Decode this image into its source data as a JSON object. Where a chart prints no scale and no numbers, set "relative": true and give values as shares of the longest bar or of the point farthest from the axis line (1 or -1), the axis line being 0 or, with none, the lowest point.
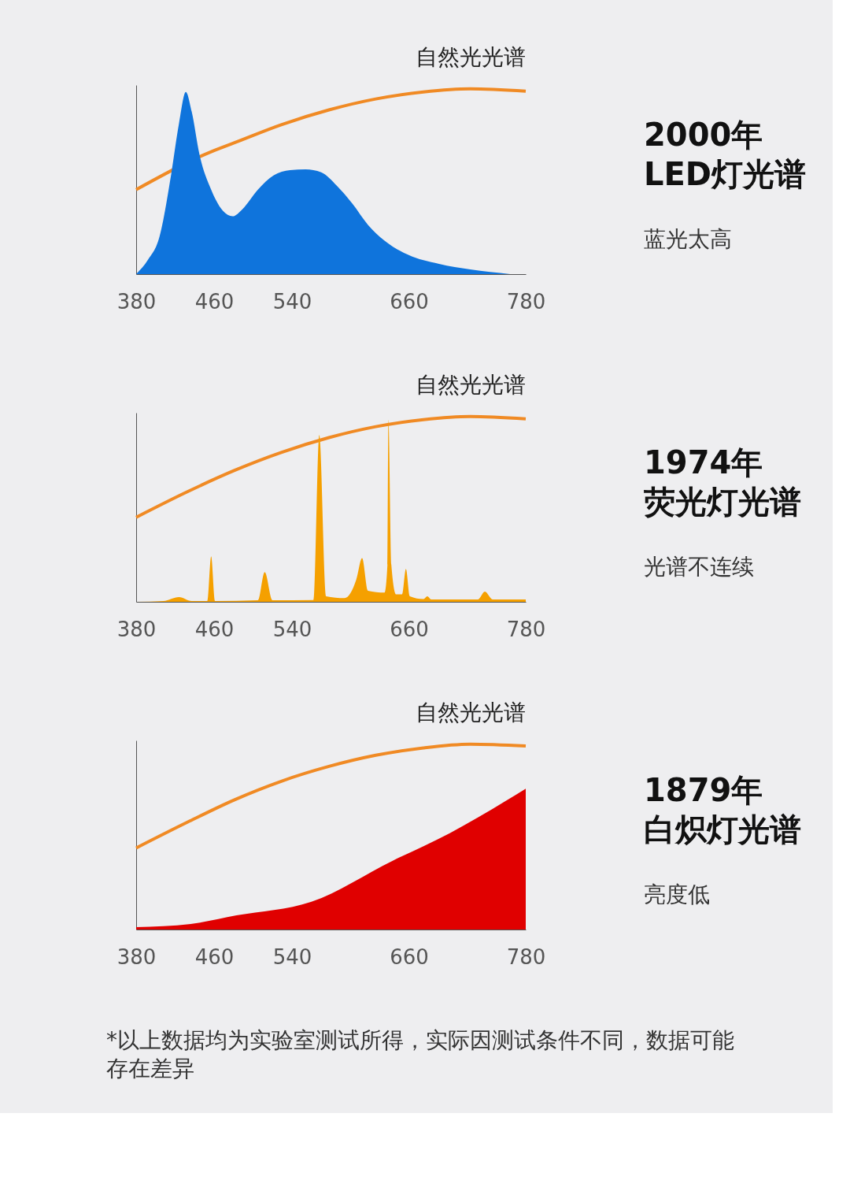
{
  "chart_data": [
    {
      "type": "area",
      "annotations": [
        "2000年LED灯光谱",
        "蓝光太高"
      ],
      "relative": true,
      "xlim": [
        380,
        780
      ],
      "xticks": [
        380,
        460,
        540,
        660,
        780
      ],
      "tick_labels": "x",
      "grid": false,
      "series": [
        {
          "name": "自然光光谱",
          "type": "line",
          "color": "#f08a24",
          "x": [
            380,
            460,
            481,
            529,
            578,
            626,
            675,
            723,
            780
          ],
          "values": [
            0.456,
            0.667,
            0.709,
            0.806,
            0.886,
            0.945,
            0.983,
            1.0,
            0.987
          ]
        },
        {
          "type": "area",
          "color": "#0f74dc",
          "x": [
            380,
            392,
            404,
            416,
            424,
            431,
            437,
            445,
            457,
            469,
            479,
            489,
            505,
            521,
            538,
            554,
            570,
            586,
            602,
            618,
            635,
            659,
            691,
            723,
            764
          ],
          "values": [
            0,
            0.076,
            0.203,
            0.54,
            0.814,
            0.983,
            0.878,
            0.646,
            0.456,
            0.342,
            0.312,
            0.35,
            0.456,
            0.532,
            0.561,
            0.565,
            0.549,
            0.477,
            0.38,
            0.266,
            0.181,
            0.105,
            0.055,
            0.025,
            0
          ]
        }
      ]
    },
    {
      "type": "area",
      "annotations": [
        "1974年荧光灯光谱",
        "光谱不连续"
      ],
      "relative": true,
      "xlim": [
        380,
        780
      ],
      "xticks": [
        380,
        460,
        540,
        660,
        780
      ],
      "tick_labels": "x",
      "grid": false,
      "series": [
        {
          "name": "自然光光谱",
          "type": "line",
          "color": "#f08a24",
          "x": [
            380,
            433,
            481,
            529,
            578,
            626,
            675,
            723,
            780
          ],
          "values": [
            0.456,
            0.595,
            0.709,
            0.806,
            0.886,
            0.945,
            0.983,
            1.0,
            0.987
          ]
        },
        {
          "type": "area",
          "color": "#f5a000",
          "x": [
            380,
            408,
            424,
            437,
            453,
            457,
            461,
            505,
            512,
            520,
            562,
            568,
            575,
            594,
            606,
            612,
            618,
            635,
            638,
            639,
            642,
            647,
            653,
            657,
            661,
            675,
            679,
            683,
            731,
            738,
            746,
            780
          ],
          "values": [
            0,
            0.004,
            0.025,
            0.004,
            0.004,
            0.245,
            0.004,
            0.008,
            0.16,
            0.008,
            0.01,
            0.9,
            0.03,
            0.02,
            0.12,
            0.236,
            0.06,
            0.05,
            0.2,
            0.983,
            0.2,
            0.04,
            0.04,
            0.177,
            0.03,
            0.015,
            0.03,
            0.013,
            0.013,
            0.055,
            0.013,
            0.013
          ]
        }
      ]
    },
    {
      "type": "area",
      "annotations": [
        "1879年白炽灯光谱",
        "亮度低"
      ],
      "relative": true,
      "xlim": [
        380,
        780
      ],
      "xticks": [
        380,
        460,
        540,
        660,
        780
      ],
      "tick_labels": "x",
      "grid": false,
      "series": [
        {
          "name": "自然光光谱",
          "type": "line",
          "color": "#f08a24",
          "x": [
            380,
            433,
            481,
            529,
            578,
            626,
            675,
            723,
            780
          ],
          "values": [
            0.44,
            0.58,
            0.7,
            0.8,
            0.88,
            0.94,
            0.98,
            1.0,
            0.99
          ]
        },
        {
          "type": "area",
          "color": "#e00000",
          "x": [
            380,
            436,
            483,
            560,
            643,
            702,
            780
          ],
          "values": [
            0.013,
            0.03,
            0.076,
            0.15,
            0.37,
            0.52,
            0.76
          ]
        }
      ]
    },
    {
      "type": "other",
      "annotations": [
        "*以上数据均为实验室测试所得，实际因测试条件不同，数据可能存在差异"
      ]
    }
  ]
}
